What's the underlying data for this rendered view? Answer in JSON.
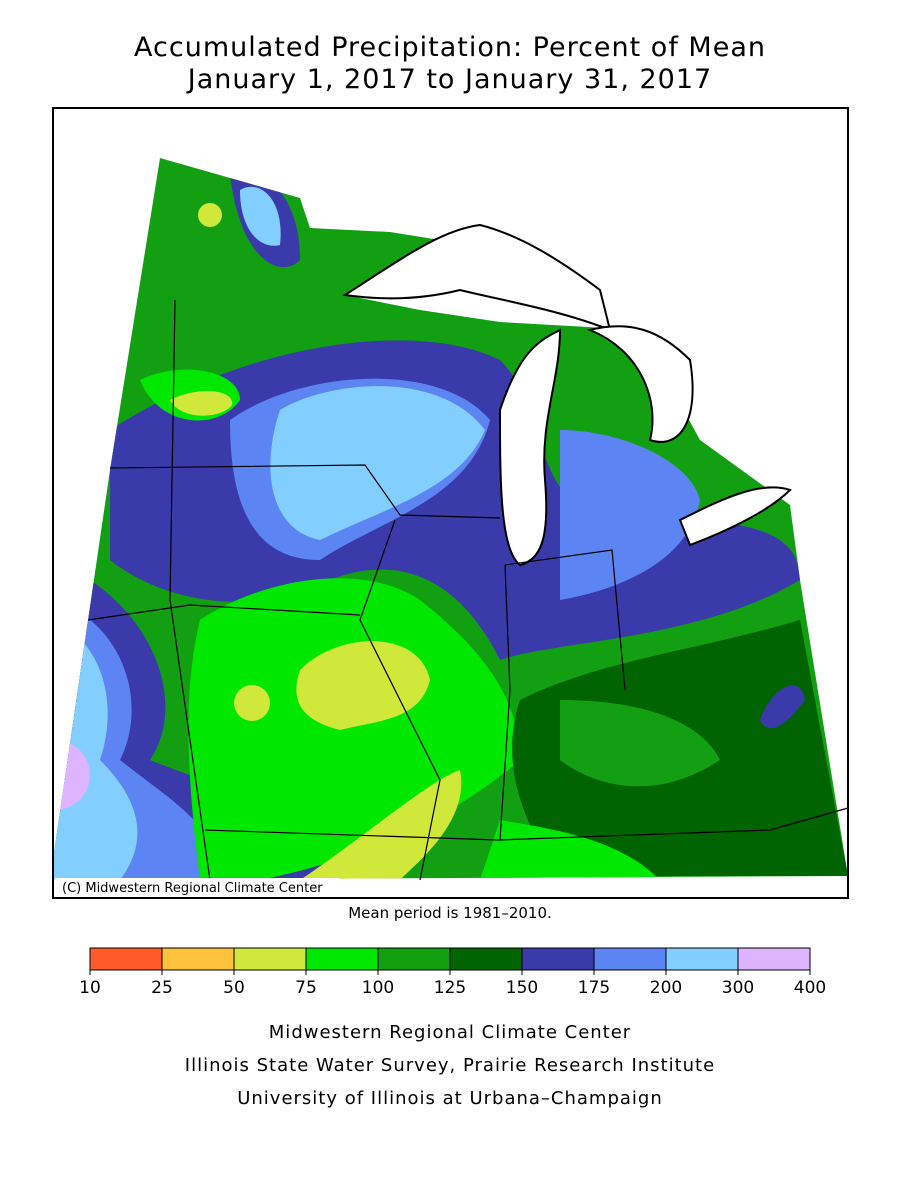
{
  "title": [
    "Accumulated Precipitation: Percent of Mean",
    "January 1, 2017 to January 31, 2017"
  ],
  "map": {
    "credit": "(C) Midwestern Regional Climate Center",
    "note": "Mean period is 1981–2010."
  },
  "legend": {
    "ticks": [
      10,
      25,
      50,
      75,
      100,
      125,
      150,
      175,
      200,
      300,
      400
    ],
    "colors": [
      "#ff5a28",
      "#ffc23c",
      "#cfe83a",
      "#00e800",
      "#12a012",
      "#006400",
      "#3a3aaa",
      "#5c84f2",
      "#82cfff",
      "#dcb4ff"
    ]
  },
  "footer": [
    "Midwestern Regional Climate Center",
    "Illinois State Water Survey, Prairie Research Institute",
    "University of Illinois at Urbana–Champaign"
  ]
}
